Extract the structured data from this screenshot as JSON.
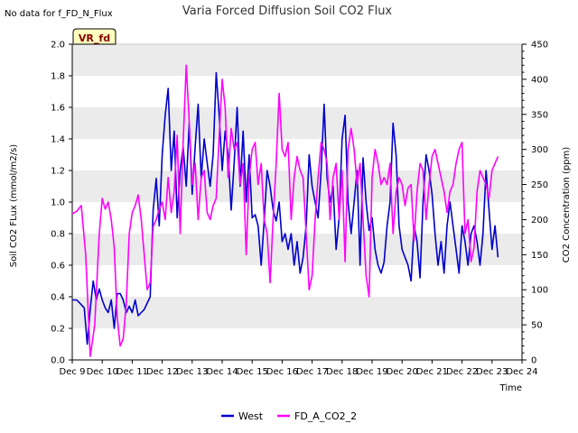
{
  "chart_data": {
    "type": "line",
    "title": "Varia Forced Diffusion Soil CO2 Flux",
    "no_data_note": "No data for f_FD_N_Flux",
    "badge": "VR_fd",
    "xlabel": "Time",
    "ylabel": "Soil CO2 FLux (mmol/m2/s)",
    "y2label": "CO2 Concentration (ppm)",
    "xlim": [
      9,
      24
    ],
    "ylim": [
      0,
      2.0
    ],
    "y2lim": [
      0,
      450
    ],
    "x_ticks": [
      "Dec 9",
      "Dec 10",
      "Dec 11",
      "Dec 12",
      "Dec 13",
      "Dec 14",
      "Dec 15",
      "Dec 16",
      "Dec 17",
      "Dec 18",
      "Dec 19",
      "Dec 20",
      "Dec 21",
      "Dec 22",
      "Dec 23",
      "Dec 24"
    ],
    "y_ticks": [
      "0.0",
      "0.2",
      "0.4",
      "0.6",
      "0.8",
      "1.0",
      "1.2",
      "1.4",
      "1.6",
      "1.8",
      "2.0"
    ],
    "y2_ticks": [
      "0",
      "50",
      "100",
      "150",
      "200",
      "250",
      "300",
      "350",
      "400",
      "450"
    ],
    "grid": "horizontal bands",
    "legend_position": "bottom",
    "colors": {
      "West": "#0000cc",
      "FD_A_CO2_2": "#ff00ff",
      "band": "#ebebeb",
      "badge_fill": "#ffffc0"
    },
    "series": [
      {
        "name": "West",
        "axis": "left",
        "x": [
          9.0,
          9.15,
          9.3,
          9.4,
          9.5,
          9.6,
          9.7,
          9.8,
          9.9,
          10.0,
          10.1,
          10.2,
          10.3,
          10.4,
          10.5,
          10.6,
          10.7,
          10.8,
          10.9,
          11.0,
          11.1,
          11.2,
          11.3,
          11.4,
          11.5,
          11.6,
          11.7,
          11.8,
          11.9,
          12.0,
          12.1,
          12.2,
          12.3,
          12.4,
          12.5,
          12.6,
          12.7,
          12.8,
          12.9,
          13.0,
          13.1,
          13.2,
          13.3,
          13.4,
          13.5,
          13.6,
          13.7,
          13.8,
          13.9,
          14.0,
          14.1,
          14.2,
          14.3,
          14.4,
          14.5,
          14.6,
          14.7,
          14.8,
          14.9,
          15.0,
          15.1,
          15.2,
          15.3,
          15.4,
          15.5,
          15.6,
          15.7,
          15.8,
          15.9,
          16.0,
          16.1,
          16.2,
          16.3,
          16.4,
          16.5,
          16.6,
          16.7,
          16.8,
          16.9,
          17.0,
          17.1,
          17.2,
          17.3,
          17.4,
          17.5,
          17.6,
          17.7,
          17.8,
          17.9,
          18.0,
          18.1,
          18.2,
          18.3,
          18.4,
          18.5,
          18.6,
          18.7,
          18.8,
          18.9,
          19.0,
          19.1,
          19.2,
          19.3,
          19.4,
          19.5,
          19.6,
          19.7,
          19.8,
          19.9,
          20.0,
          20.1,
          20.2,
          20.3,
          20.4,
          20.5,
          20.6,
          20.7,
          20.8,
          20.9,
          21.0,
          21.1,
          21.2,
          21.3,
          21.4,
          21.5,
          21.6,
          21.7,
          21.8,
          21.9,
          22.0,
          22.1,
          22.2,
          22.3,
          22.4,
          22.5,
          22.6,
          22.7,
          22.8,
          22.9,
          23.0,
          23.1,
          23.2
        ],
        "values": [
          0.38,
          0.38,
          0.35,
          0.33,
          0.1,
          0.32,
          0.5,
          0.38,
          0.45,
          0.38,
          0.33,
          0.3,
          0.38,
          0.2,
          0.42,
          0.42,
          0.38,
          0.3,
          0.34,
          0.3,
          0.38,
          0.28,
          0.3,
          0.32,
          0.36,
          0.4,
          0.95,
          1.15,
          0.85,
          1.3,
          1.55,
          1.72,
          1.2,
          1.45,
          0.9,
          1.2,
          1.35,
          1.1,
          1.5,
          1.05,
          1.35,
          1.62,
          1.15,
          1.4,
          1.25,
          1.1,
          1.3,
          1.82,
          1.55,
          1.2,
          1.45,
          1.3,
          0.95,
          1.25,
          1.6,
          1.1,
          1.45,
          1.0,
          1.3,
          0.9,
          0.92,
          0.85,
          0.6,
          0.88,
          1.2,
          1.1,
          0.95,
          0.88,
          1.0,
          0.75,
          0.8,
          0.7,
          0.8,
          0.6,
          0.75,
          0.55,
          0.65,
          0.85,
          1.3,
          1.1,
          1.0,
          0.9,
          1.2,
          1.62,
          1.15,
          1.0,
          1.1,
          0.7,
          0.9,
          1.4,
          1.55,
          1.0,
          0.8,
          1.0,
          1.2,
          0.6,
          1.28,
          1.0,
          0.82,
          0.9,
          0.7,
          0.6,
          0.55,
          0.62,
          0.85,
          1.0,
          1.5,
          1.3,
          0.85,
          0.7,
          0.65,
          0.6,
          0.5,
          0.85,
          0.75,
          0.52,
          1.0,
          1.3,
          1.2,
          1.05,
          0.8,
          0.6,
          0.75,
          0.55,
          0.85,
          1.0,
          0.85,
          0.7,
          0.55,
          0.85,
          0.75,
          0.6,
          0.8,
          0.85,
          0.75,
          0.6,
          0.8,
          1.2,
          0.95,
          0.7,
          0.85,
          0.65
        ]
      },
      {
        "name": "FD_A_CO2_2",
        "axis": "right",
        "x": [
          9.0,
          9.15,
          9.3,
          9.45,
          9.6,
          9.75,
          9.9,
          10.0,
          10.1,
          10.2,
          10.3,
          10.4,
          10.5,
          10.6,
          10.7,
          10.8,
          10.9,
          11.0,
          11.1,
          11.2,
          11.3,
          11.4,
          11.5,
          11.6,
          11.7,
          11.8,
          11.9,
          12.0,
          12.1,
          12.2,
          12.3,
          12.4,
          12.5,
          12.6,
          12.7,
          12.8,
          12.9,
          13.0,
          13.1,
          13.2,
          13.3,
          13.4,
          13.5,
          13.6,
          13.7,
          13.8,
          13.9,
          14.0,
          14.1,
          14.2,
          14.3,
          14.4,
          14.5,
          14.6,
          14.7,
          14.8,
          14.9,
          15.0,
          15.1,
          15.2,
          15.3,
          15.4,
          15.5,
          15.6,
          15.7,
          15.8,
          15.9,
          16.0,
          16.1,
          16.2,
          16.3,
          16.4,
          16.5,
          16.6,
          16.7,
          16.8,
          16.9,
          17.0,
          17.1,
          17.2,
          17.3,
          17.4,
          17.5,
          17.6,
          17.7,
          17.8,
          17.9,
          18.0,
          18.1,
          18.2,
          18.3,
          18.4,
          18.5,
          18.6,
          18.7,
          18.8,
          18.9,
          19.0,
          19.1,
          19.2,
          19.3,
          19.4,
          19.5,
          19.6,
          19.7,
          19.8,
          19.9,
          20.0,
          20.1,
          20.2,
          20.3,
          20.4,
          20.5,
          20.6,
          20.7,
          20.8,
          20.9,
          21.0,
          21.1,
          21.2,
          21.3,
          21.4,
          21.5,
          21.6,
          21.7,
          21.8,
          21.9,
          22.0,
          22.1,
          22.2,
          22.3,
          22.4,
          22.5,
          22.6,
          22.7,
          22.8,
          22.9,
          23.0,
          23.1,
          23.2
        ],
        "values": [
          208,
          212,
          220,
          150,
          5,
          50,
          180,
          230,
          215,
          225,
          200,
          160,
          60,
          20,
          30,
          80,
          180,
          210,
          220,
          235,
          200,
          150,
          100,
          110,
          190,
          200,
          215,
          225,
          200,
          260,
          210,
          240,
          320,
          180,
          310,
          420,
          340,
          250,
          280,
          200,
          260,
          270,
          210,
          200,
          220,
          230,
          320,
          400,
          360,
          260,
          330,
          300,
          310,
          250,
          280,
          150,
          260,
          300,
          310,
          250,
          280,
          200,
          180,
          110,
          200,
          280,
          380,
          300,
          290,
          310,
          200,
          260,
          290,
          270,
          260,
          180,
          100,
          120,
          200,
          260,
          310,
          300,
          280,
          200,
          260,
          280,
          200,
          270,
          140,
          300,
          330,
          300,
          250,
          280,
          200,
          120,
          90,
          260,
          300,
          280,
          250,
          260,
          250,
          280,
          180,
          240,
          260,
          250,
          220,
          245,
          250,
          170,
          240,
          280,
          270,
          200,
          250,
          290,
          300,
          280,
          260,
          240,
          210,
          240,
          250,
          280,
          300,
          310,
          180,
          200,
          140,
          160,
          240,
          270,
          260,
          250,
          230,
          270,
          280,
          290
        ]
      }
    ]
  }
}
